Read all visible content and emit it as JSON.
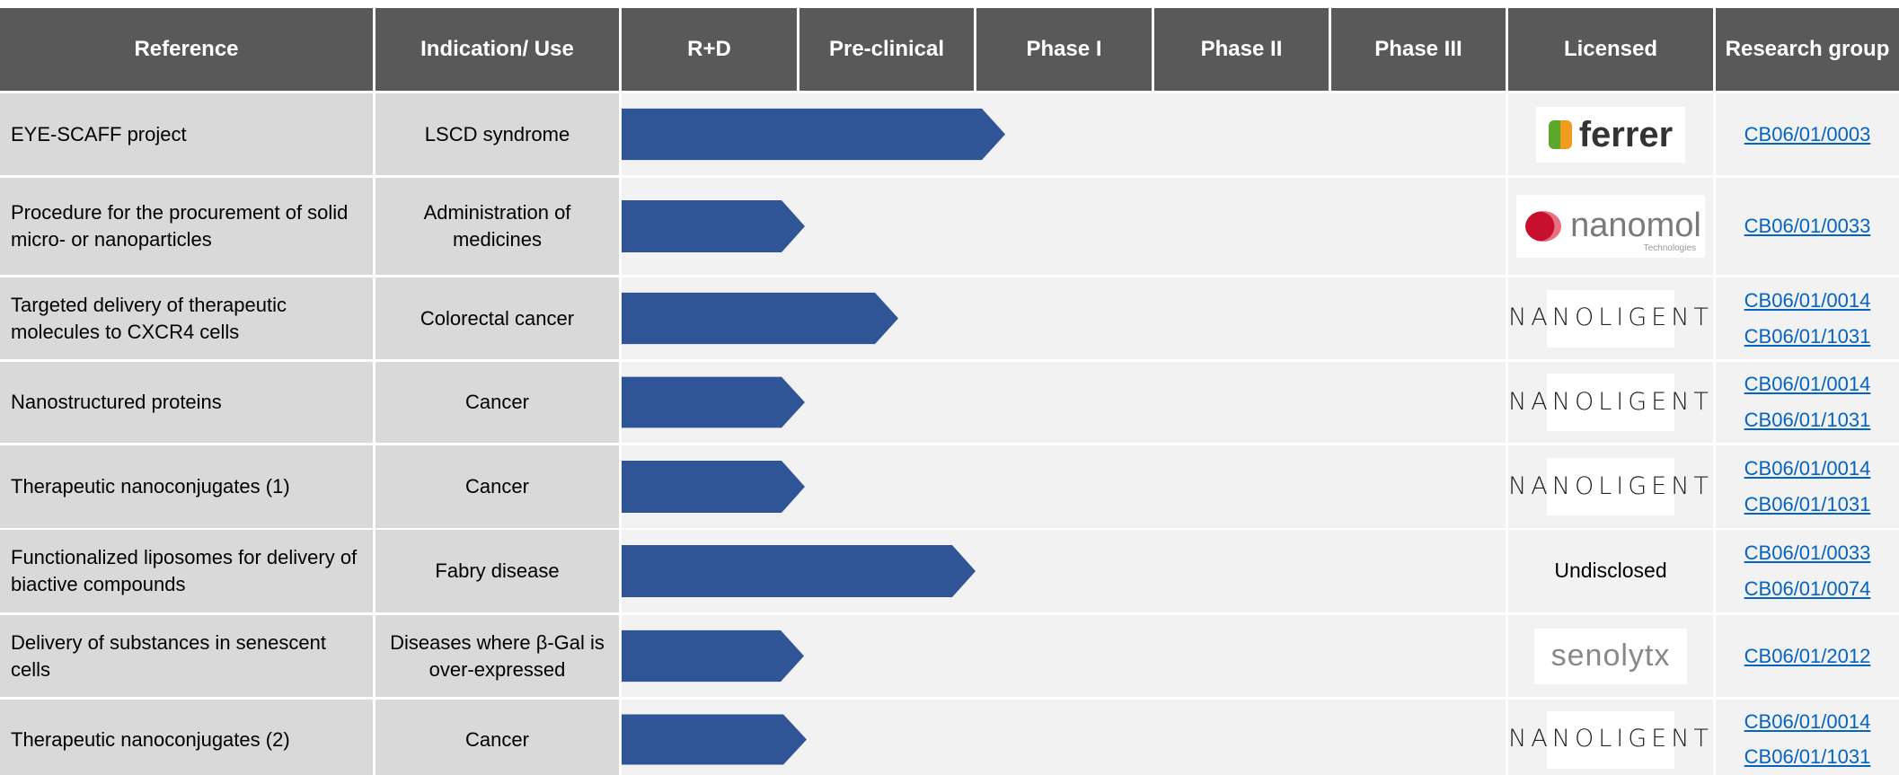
{
  "header": [
    "Reference",
    "Indication/ Use",
    "R+D",
    "Pre-clinical",
    "Phase I",
    "Phase II",
    "Phase III",
    "Licensed",
    "Research group"
  ],
  "rows": [
    {
      "reference": "EYE-SCAFF project",
      "indication": "LSCD syndrome",
      "licensed": {
        "text": "ferrer"
      },
      "groups": [
        "CB06/01/0003"
      ]
    },
    {
      "reference": "Procedure for the procurement of solid micro- or nanoparticles",
      "indication": "Administration of medicines",
      "licensed": {
        "text": "nanomol",
        "sub": "Technologies"
      },
      "groups": [
        "CB06/01/0033"
      ]
    },
    {
      "reference": "Targeted delivery of therapeutic molecules to CXCR4 cells",
      "indication": "Colorectal cancer",
      "licensed": {
        "text": "NANOLIGENT"
      },
      "groups": [
        "CB06/01/0014",
        "CB06/01/1031"
      ]
    },
    {
      "reference": "Nanostructured proteins",
      "indication": "Cancer",
      "licensed": {
        "text": "NANOLIGENT"
      },
      "groups": [
        "CB06/01/0014",
        "CB06/01/1031"
      ]
    },
    {
      "reference": "Therapeutic nanoconjugates (1)",
      "indication": "Cancer",
      "licensed": {
        "text": "NANOLIGENT"
      },
      "groups": [
        "CB06/01/0014",
        "CB06/01/1031"
      ]
    },
    {
      "reference": "Functionalized liposomes for delivery of biactive compounds",
      "indication": "Fabry disease",
      "licensed": {
        "text": "Undisclosed"
      },
      "groups": [
        "CB06/01/0033",
        "CB06/01/0074"
      ]
    },
    {
      "reference": "Delivery of substances in senescent cells",
      "indication": "Diseases where β-Gal is over-expressed",
      "licensed": {
        "text": "senolytx"
      },
      "groups": [
        "CB06/01/2012"
      ]
    },
    {
      "reference": "Therapeutic nanoconjugates (2)",
      "indication": "Cancer",
      "licensed": {
        "text": "NANOLIGENT"
      },
      "groups": [
        "CB06/01/0014",
        "CB06/01/1031"
      ]
    }
  ]
}
